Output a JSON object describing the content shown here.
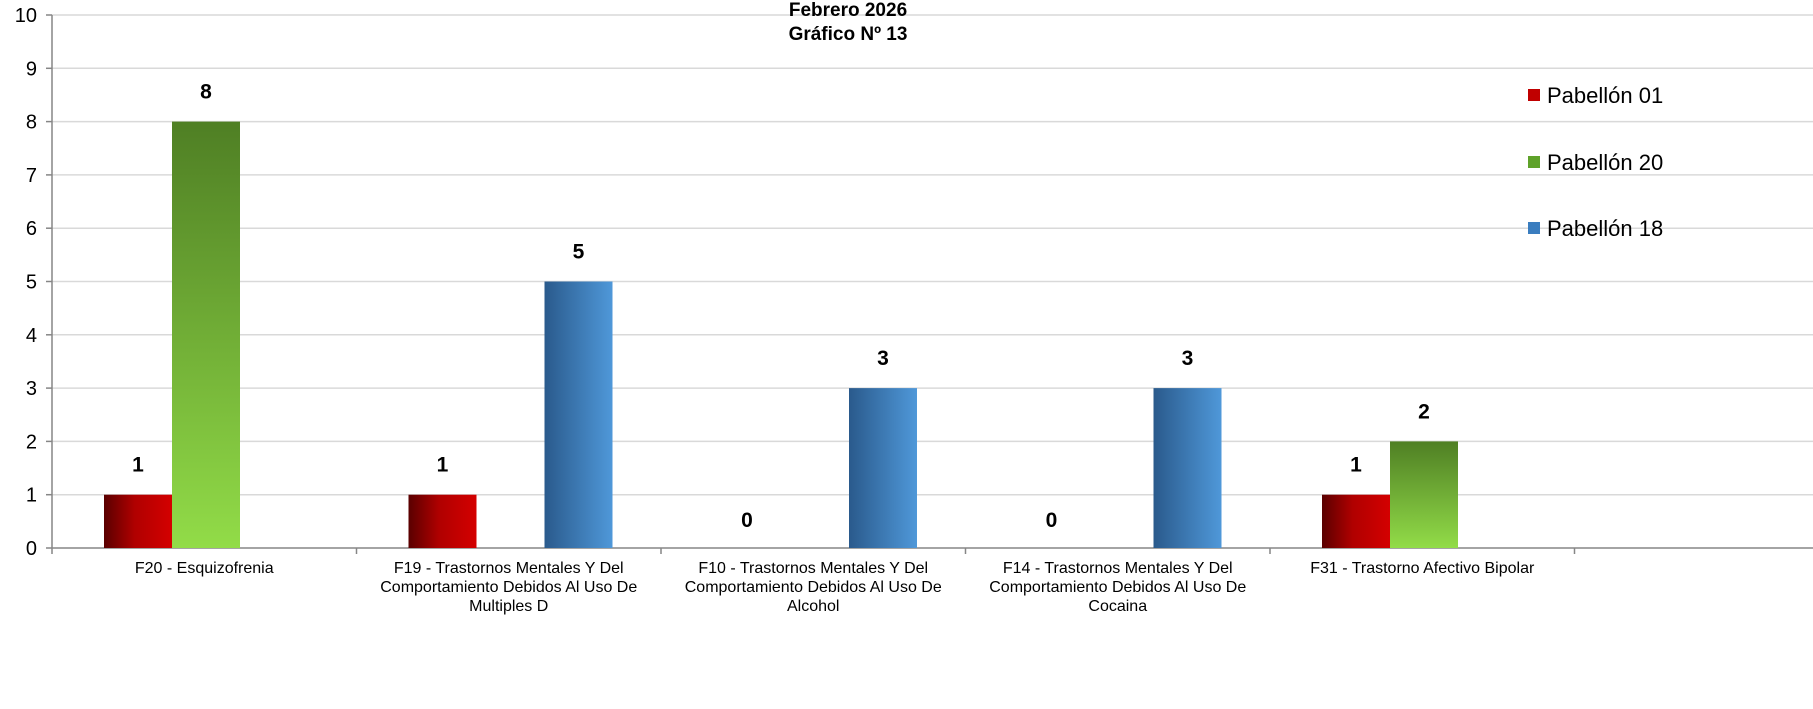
{
  "chart_data": {
    "type": "bar",
    "title": "Febrero 2026",
    "subtitle": "Gráfico Nº 13",
    "categories": [
      "F20 - Esquizofrenia",
      "F19 - Trastornos Mentales Y Del Comportamiento Debidos Al Uso De Multiples D",
      "F10 - Trastornos Mentales Y Del Comportamiento Debidos Al Uso De Alcohol",
      "F14 - Trastornos Mentales Y Del Comportamiento Debidos Al Uso De Cocaina",
      "F31 - Trastorno Afectivo Bipolar"
    ],
    "category_label_lines": [
      [
        "F20 - Esquizofrenia"
      ],
      [
        "F19 - Trastornos Mentales Y Del",
        "Comportamiento Debidos Al Uso De",
        "Multiples D"
      ],
      [
        "F10 - Trastornos Mentales Y Del",
        "Comportamiento Debidos Al Uso De",
        "Alcohol"
      ],
      [
        "F14 - Trastornos Mentales Y Del",
        "Comportamiento Debidos Al Uso De",
        "Cocaina"
      ],
      [
        "F31 - Trastorno Afectivo Bipolar"
      ]
    ],
    "series": [
      {
        "name": "Pabellón 01",
        "color": "#c00000",
        "values": [
          1,
          1,
          0,
          0,
          1
        ]
      },
      {
        "name": "Pabellón 20",
        "color": "#5f9e2b",
        "values": [
          8,
          null,
          null,
          null,
          2
        ]
      },
      {
        "name": "Pabellón 18",
        "color": "#3a7dbf",
        "values": [
          null,
          5,
          3,
          3,
          null
        ]
      }
    ],
    "ylim": [
      0,
      10
    ],
    "yticks": [
      0,
      1,
      2,
      3,
      4,
      5,
      6,
      7,
      8,
      9,
      10
    ],
    "grid": true,
    "legend_position": "right",
    "xlabel": "",
    "ylabel": ""
  }
}
